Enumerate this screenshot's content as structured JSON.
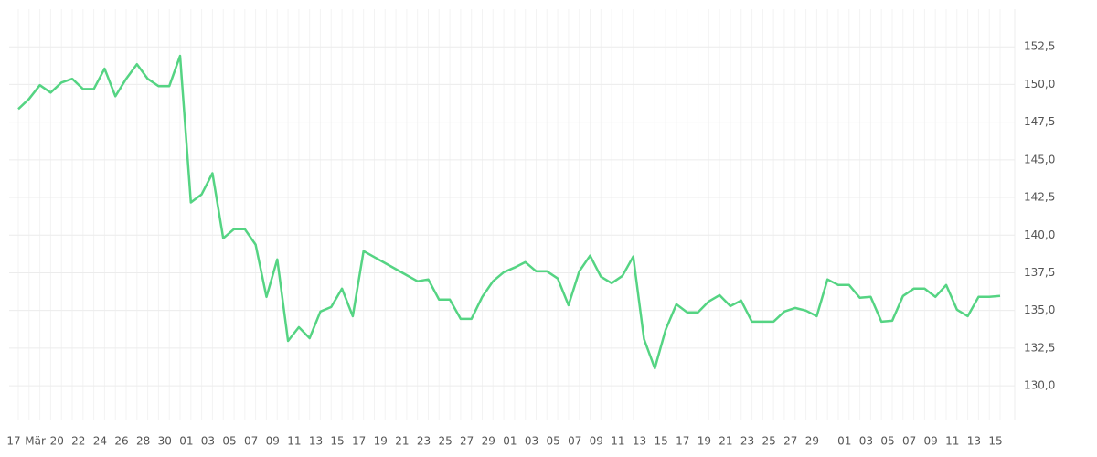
{
  "chart_data": {
    "type": "line",
    "categories": [
      "17",
      null,
      "Mär",
      null,
      "20",
      null,
      "22",
      null,
      "24",
      null,
      "26",
      null,
      "28",
      null,
      "30",
      null,
      "01",
      null,
      "03",
      null,
      "05",
      null,
      "07",
      null,
      "09",
      null,
      "11",
      null,
      "13",
      null,
      "15",
      null,
      "17",
      null,
      "19",
      null,
      "21",
      null,
      "23",
      null,
      "25",
      null,
      "27",
      null,
      "29",
      null,
      "01",
      null,
      "03",
      null,
      "05",
      null,
      "07",
      null,
      "09",
      null,
      "11",
      null,
      "13",
      null,
      "15",
      null,
      "17",
      null,
      "19",
      null,
      "21",
      null,
      "23",
      null,
      "25",
      null,
      "27",
      null,
      "29",
      null,
      null,
      "01",
      null,
      "03",
      null,
      "05",
      null,
      "07",
      null,
      "09",
      null,
      "11",
      null,
      "13",
      null,
      "15"
    ],
    "series": [
      {
        "color": "#55d483",
        "values": [
          148.37,
          149.04,
          149.95,
          149.46,
          150.13,
          150.38,
          149.7,
          149.7,
          151.05,
          149.22,
          150.38,
          151.35,
          150.38,
          149.89,
          149.89,
          151.9,
          142.17,
          142.71,
          144.11,
          139.79,
          140.4,
          140.4,
          139.37,
          135.9,
          138.39,
          132.98,
          133.89,
          133.16,
          134.93,
          135.23,
          136.45,
          134.62,
          138.94,
          138.54,
          138.14,
          137.74,
          137.34,
          136.94,
          137.06,
          135.72,
          135.72,
          134.44,
          134.44,
          135.9,
          136.94,
          137.54,
          137.85,
          138.21,
          137.6,
          137.6,
          137.12,
          135.35,
          137.6,
          138.64,
          137.24,
          136.81,
          137.3,
          138.58,
          133.1,
          131.16,
          133.71,
          135.41,
          134.87,
          134.87,
          135.6,
          136.02,
          135.29,
          135.66,
          134.26,
          134.26,
          134.26,
          134.93,
          135.17,
          134.99,
          134.62,
          137.06,
          136.69,
          136.69,
          135.84,
          135.9,
          134.26,
          134.32,
          135.96,
          136.45,
          136.45,
          135.9,
          136.69,
          135.05,
          134.62,
          135.9,
          135.9,
          135.96
        ]
      }
    ],
    "ylim": [
      127.7,
      155
    ],
    "yticks": [
      {
        "value": 130,
        "label": "130,0"
      },
      {
        "value": 132.5,
        "label": "132,5"
      },
      {
        "value": 135,
        "label": "135,0"
      },
      {
        "value": 137.5,
        "label": "137,5"
      },
      {
        "value": 140,
        "label": "140,0"
      },
      {
        "value": 142.5,
        "label": "142,5"
      },
      {
        "value": 145,
        "label": "145,0"
      },
      {
        "value": 147.5,
        "label": "147,5"
      },
      {
        "value": 150,
        "label": "150,0"
      },
      {
        "value": 152.5,
        "label": "152,5"
      }
    ],
    "grid": true
  }
}
